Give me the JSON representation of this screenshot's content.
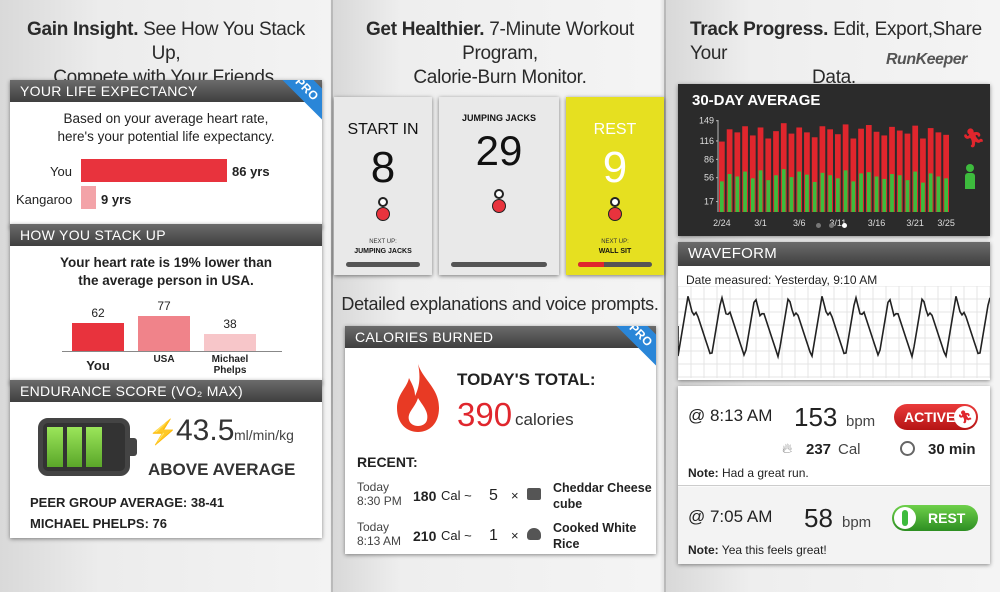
{
  "col1": {
    "headline_bold": "Gain Insight.",
    "headline_rest1": "See How You Stack Up,",
    "headline_rest2": "Compete with Your Friends.",
    "life": {
      "title": "YOUR LIFE EXPECTANCY",
      "badge": "PRO",
      "desc1": "Based on your average heart rate,",
      "desc2": "here's your potential life expectancy.",
      "rows": [
        {
          "label": "You",
          "value": 86,
          "text": "86 yrs",
          "color": "#e8333d"
        },
        {
          "label": "Kangaroo",
          "value": 9,
          "text": "9 yrs",
          "color": "#f3a3a8"
        }
      ]
    },
    "stack": {
      "title": "HOW YOU STACK UP",
      "desc1": "Your heart rate is 19% lower than",
      "desc2": "the average person in USA.",
      "bars": [
        {
          "label": "You",
          "value": 62,
          "color": "#e8333d"
        },
        {
          "label": "USA",
          "value": 77,
          "color": "#f0838a"
        },
        {
          "label": "Michael Phelps",
          "value": 38,
          "color": "#f7c6c9"
        }
      ]
    },
    "endurance": {
      "title": "ENDURANCE SCORE (VO₂ MAX)",
      "value": "43.5",
      "unit": "ml/min/kg",
      "rating": "ABOVE AVERAGE",
      "peer": "PEER GROUP AVERAGE:  38-41",
      "phelps": "MICHAEL PHELPS:  76",
      "battery_level": 0.75
    }
  },
  "col2": {
    "headline_bold": "Get Healthier.",
    "headline_rest1": "7-Minute Workout Program,",
    "headline_rest2": "Calorie-Burn Monitor.",
    "screens": [
      {
        "title": "START IN",
        "number": "8",
        "next_label": "NEXT UP:",
        "next": "JUMPING JACKS",
        "bg": "#e9e9e9",
        "progress": 0
      },
      {
        "title": "JUMPING JACKS",
        "number": "29",
        "next_label": "",
        "next": "",
        "bg": "#e9e9e9",
        "progress": 0
      },
      {
        "title": "REST",
        "number": "9",
        "next_label": "NEXT UP:",
        "next": "WALL SIT",
        "bg": "#e6e020",
        "progress": 0.35
      }
    ],
    "caption": "Detailed explanations and voice prompts.",
    "calories": {
      "title": "CALORIES BURNED",
      "badge": "PRO",
      "total_label": "TODAY'S TOTAL:",
      "total_value": "390",
      "total_unit": "calories",
      "recent_label": "RECENT:",
      "items": [
        {
          "day": "Today",
          "time": "8:30 PM",
          "cal": "180",
          "cal_unit": "Cal ~",
          "qty": "5",
          "x": "×",
          "food": "Cheddar Cheese cube"
        },
        {
          "day": "Today",
          "time": "8:13 AM",
          "cal": "210",
          "cal_unit": "Cal ~",
          "qty": "1",
          "x": "×",
          "food": "Cooked White Rice"
        }
      ]
    }
  },
  "col3": {
    "headline_bold": "Track Progress.",
    "headline_rest1": "Edit, Export,Share Your",
    "headline_rest2": "Data.",
    "brand": "RunKeeper",
    "avg": {
      "title": "30-DAY AVERAGE",
      "yticks": [
        "149",
        "116",
        "86",
        "56",
        "17"
      ],
      "xticks": [
        "2/24",
        "3/1",
        "3/6",
        "3/11",
        "3/16",
        "3/21",
        "3/25"
      ]
    },
    "waveform": {
      "title": "WAVEFORM",
      "date": "Date measured: Yesterday, 9:10 AM"
    },
    "entries": [
      {
        "time": "@ 8:13 AM",
        "bpm": "153",
        "bpm_unit": "bpm",
        "status": "ACTIVE",
        "cal": "237",
        "cal_unit": "Cal",
        "min": "30 min",
        "note_label": "Note:",
        "note": "Had a great run."
      },
      {
        "time": "@ 7:05 AM",
        "bpm": "58",
        "bpm_unit": "bpm",
        "status": "REST",
        "note_label": "Note:",
        "note": "Yea this feels great!"
      }
    ]
  },
  "chart_data": {
    "type": "bar",
    "title": "30-DAY AVERAGE",
    "xlabel": "",
    "ylabel": "",
    "yticks": [
      17,
      56,
      86,
      116,
      149
    ],
    "ylim": [
      0,
      160
    ],
    "categories": [
      "2/24",
      "2/25",
      "2/26",
      "2/27",
      "2/28",
      "3/1",
      "3/2",
      "3/3",
      "3/4",
      "3/5",
      "3/6",
      "3/7",
      "3/8",
      "3/9",
      "3/10",
      "3/11",
      "3/12",
      "3/13",
      "3/14",
      "3/15",
      "3/16",
      "3/17",
      "3/18",
      "3/19",
      "3/20",
      "3/21",
      "3/22",
      "3/23",
      "3/24",
      "3/25"
    ],
    "series": [
      {
        "values": [
          115,
          135,
          130,
          140,
          125,
          138,
          120,
          132,
          145,
          128,
          138,
          130,
          122,
          140,
          135,
          127,
          143,
          120,
          136,
          142,
          131,
          125,
          139,
          133,
          128,
          141,
          120,
          137,
          130,
          126
        ],
        "color": "#e0262d"
      },
      {
        "values": [
          50,
          62,
          58,
          66,
          55,
          68,
          52,
          60,
          70,
          57,
          66,
          61,
          49,
          64,
          60,
          55,
          68,
          50,
          63,
          65,
          58,
          54,
          62,
          60,
          52,
          66,
          48,
          63,
          58,
          55
        ],
        "color": "#3dbb3d"
      }
    ]
  }
}
